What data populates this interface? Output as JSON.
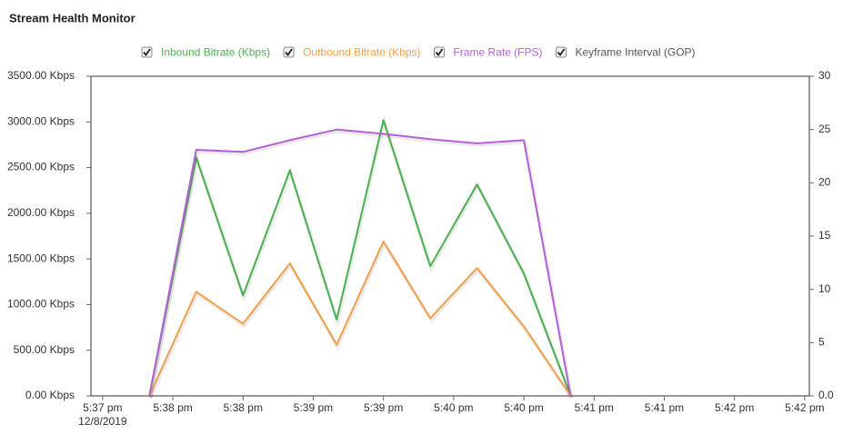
{
  "chart_data": {
    "type": "line",
    "title": "Stream Health Monitor",
    "x": [
      0,
      1,
      2,
      3,
      4,
      5,
      6,
      7,
      8,
      9
    ],
    "xlim": [
      -1.25,
      14.1
    ],
    "xticks": [
      {
        "value": -1,
        "label": "5:37 pm"
      },
      {
        "value": 0.5,
        "label": "5:38 pm"
      },
      {
        "value": 2,
        "label": "5:38 pm"
      },
      {
        "value": 3.5,
        "label": "5:39 pm"
      },
      {
        "value": 5,
        "label": "5:39 pm"
      },
      {
        "value": 6.5,
        "label": "5:40 pm"
      },
      {
        "value": 8,
        "label": "5:40 pm"
      },
      {
        "value": 9.5,
        "label": "5:41 pm"
      },
      {
        "value": 11,
        "label": "5:41 pm"
      },
      {
        "value": 12.5,
        "label": "5:42 pm"
      },
      {
        "value": 14,
        "label": "5:42 pm"
      }
    ],
    "x_date": "12/8/2019",
    "ylim": [
      0,
      3500
    ],
    "yticks": [
      {
        "value": 0,
        "label": "0.00 Kbps"
      },
      {
        "value": 500,
        "label": "500.00 Kbps"
      },
      {
        "value": 1000,
        "label": "1000.00 Kbps"
      },
      {
        "value": 1500,
        "label": "1500.00 Kbps"
      },
      {
        "value": 2000,
        "label": "2000.00 Kbps"
      },
      {
        "value": 2500,
        "label": "2500.00 Kbps"
      },
      {
        "value": 3000,
        "label": "3000.00 Kbps"
      },
      {
        "value": 3500,
        "label": "3500.00 Kbps"
      }
    ],
    "y2lim": [
      0,
      30
    ],
    "y2ticks": [
      {
        "value": 0,
        "label": "0.0"
      },
      5,
      10,
      15,
      20,
      25,
      30
    ],
    "series": [
      {
        "name": "Inbound Bitrate (Kbps)",
        "color": "#4caf50",
        "values": [
          0,
          2610,
          1100,
          2470,
          835,
          3020,
          1420,
          2315,
          1340,
          0
        ]
      },
      {
        "name": "Outbound Bitrate (Kbps)",
        "color": "#f0a04b",
        "values": [
          0,
          1140,
          790,
          1450,
          560,
          1690,
          850,
          1400,
          760,
          0
        ]
      },
      {
        "name": "Frame Rate (FPS)",
        "color": "#b660d6",
        "axis": "y2",
        "values": [
          0,
          23.1,
          22.9,
          24,
          25,
          24.6,
          24.1,
          23.7,
          24,
          0
        ]
      },
      {
        "name": "Keyframe Interval (GOP)",
        "color": "#555555",
        "axis": "y2",
        "values": [
          null,
          null,
          null,
          null,
          null,
          null,
          null,
          null,
          null,
          null
        ]
      }
    ]
  }
}
